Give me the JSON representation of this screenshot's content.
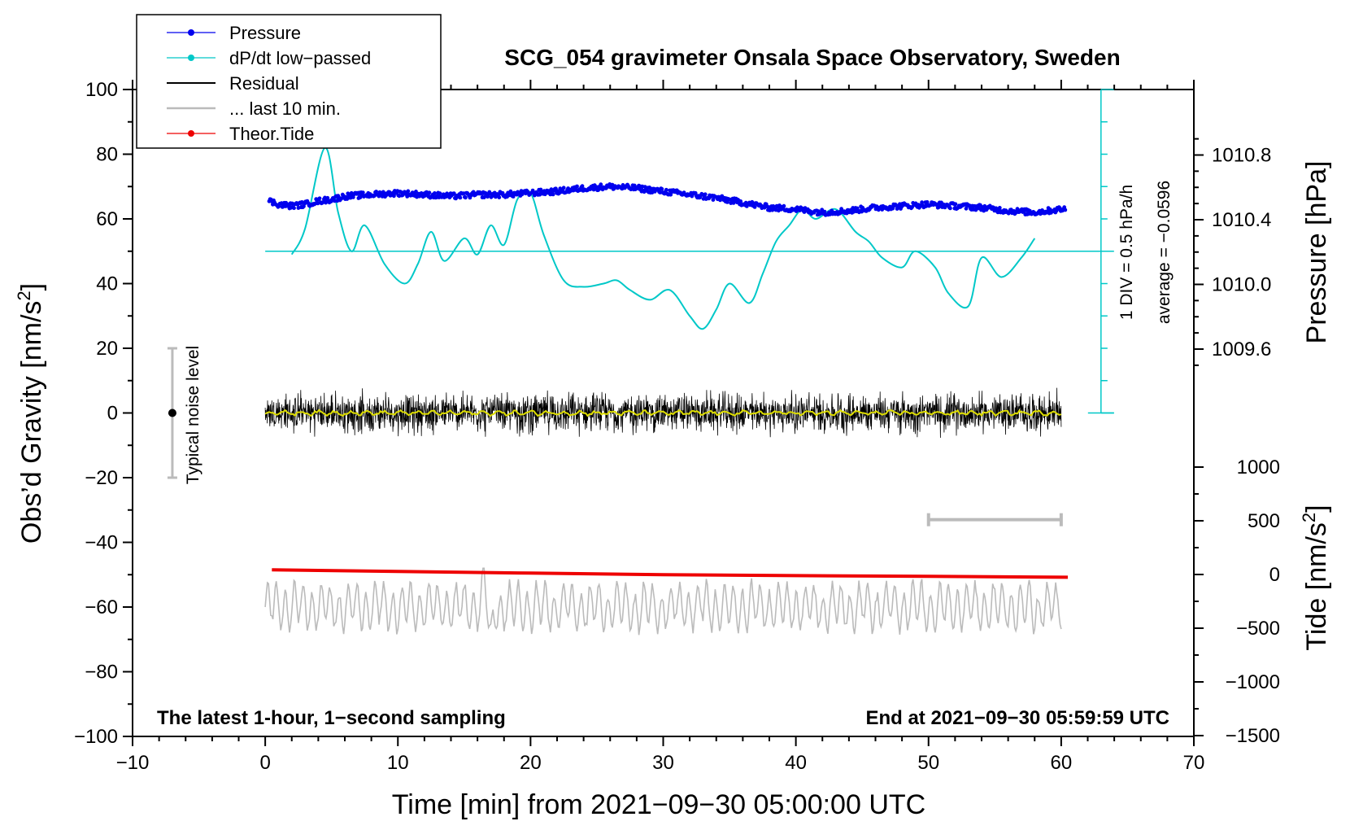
{
  "chart_data": {
    "type": "line",
    "title": "SCG_054 gravimeter Onsala Space Observatory, Sweden",
    "xlabel": "Time [min] from 2021−09−30 05:00:00 UTC",
    "ylabel_left": "Obs’d Gravity [nm/s",
    "ylabel_left_sup": "2",
    "ylabel_left_end": "]",
    "ylabel_pressure": "Pressure [hPa]",
    "ylabel_tide": "Tide [nm/s",
    "ylabel_tide_sup": "2",
    "ylabel_tide_end": "]",
    "xlim": [
      -10,
      70
    ],
    "ylim_left": [
      -100,
      100
    ],
    "x_ticks": [
      -10,
      0,
      10,
      20,
      30,
      40,
      50,
      60,
      70
    ],
    "x_tick_labels": [
      "−10",
      "0",
      "10",
      "20",
      "30",
      "40",
      "50",
      "60",
      "70"
    ],
    "y_left_ticks": [
      100,
      80,
      60,
      40,
      20,
      0,
      -20,
      -40,
      -60,
      -80,
      -100
    ],
    "y_left_tick_labels": [
      "100",
      "80",
      "60",
      "40",
      "20",
      "0",
      "−20",
      "−40",
      "−60",
      "−80",
      "−100"
    ],
    "pressure_axis": {
      "ticks": [
        1010.8,
        1010.4,
        1010.0,
        1009.6
      ],
      "tick_labels": [
        "1010.8",
        "1010.4",
        "1010.0",
        "1009.6"
      ]
    },
    "tide_axis": {
      "ticks": [
        1000,
        500,
        0,
        -500,
        -1000,
        -1500
      ],
      "tick_labels": [
        "1000",
        "500",
        "0",
        "−500",
        "−1000",
        "−1500"
      ]
    },
    "legend": [
      {
        "label": "Pressure",
        "color": "#0000ee",
        "marker": true
      },
      {
        "label": "dP/dt low−passed",
        "color": "#00c8c8",
        "marker": true
      },
      {
        "label": "Residual",
        "color": "#000000",
        "marker": false
      },
      {
        "label": "... last 10 min.",
        "color": "#bbbbbb",
        "marker": false
      },
      {
        "label": "Theor.Tide",
        "color": "#ee0000",
        "marker": true
      }
    ],
    "series": [
      {
        "name": "Pressure",
        "color": "#0000ee",
        "x": [
          0,
          1,
          2,
          3,
          4,
          5,
          6,
          8,
          10,
          12,
          14,
          16,
          18,
          20,
          22,
          24,
          26,
          28,
          30,
          32,
          34,
          36,
          38,
          40,
          42,
          44,
          46,
          48,
          50,
          52,
          54,
          56,
          58,
          60
        ],
        "values": [
          66,
          64.5,
          64,
          64.5,
          65.5,
          66,
          67,
          67.5,
          68,
          67.5,
          67,
          67.5,
          67.5,
          68,
          68.5,
          69.5,
          70,
          69.5,
          68.5,
          67.5,
          66.5,
          65,
          63.5,
          63,
          62,
          62.5,
          63.5,
          64,
          64.5,
          64,
          63.5,
          62.5,
          62,
          63
        ]
      },
      {
        "name": "dP/dt low−passed",
        "color": "#00c8c8",
        "x": [
          2,
          3,
          4.5,
          5.5,
          6.5,
          7.5,
          9,
          10.5,
          11.5,
          12.5,
          13.5,
          15,
          16,
          17,
          18,
          19,
          20,
          21,
          22.5,
          24,
          25.5,
          26.5,
          27.5,
          29,
          30.5,
          32,
          33,
          34,
          35,
          36.5,
          37.5,
          38.5,
          39.5,
          40.5,
          41.5,
          43,
          44.5,
          45.5,
          46.5,
          48,
          49,
          50.5,
          51.5,
          53,
          54,
          55.5,
          57,
          58
        ],
        "values": [
          49,
          57,
          82,
          62,
          50,
          58,
          46,
          40,
          46,
          56,
          47,
          54,
          49,
          58,
          52,
          66,
          68,
          55,
          41,
          39,
          40,
          41,
          38,
          35,
          38,
          30,
          26,
          32,
          40,
          34,
          43,
          53,
          58,
          63,
          60,
          63,
          56,
          53,
          48,
          45,
          50,
          45,
          37,
          33,
          48,
          42,
          48,
          54
        ]
      },
      {
        "name": "Residual",
        "color": "#000000",
        "x_range": [
          0,
          60
        ],
        "center": 0,
        "amplitude_range": [
          -15,
          12
        ]
      },
      {
        "name": "Residual smoothed",
        "color": "#dddd00",
        "x_range": [
          0,
          60
        ],
        "center": 0
      },
      {
        "name": "... last 10 min.",
        "color": "#bbbbbb",
        "x_range": [
          0,
          60
        ],
        "center": -60,
        "amplitude_range": [
          -77,
          -48
        ]
      },
      {
        "name": "Theor.Tide",
        "color": "#ee0000",
        "x": [
          0.5,
          10,
          20,
          30,
          40,
          50,
          60.5
        ],
        "values": [
          -48.5,
          -49,
          -49.5,
          -50,
          -50.3,
          -50.5,
          -50.8
        ]
      }
    ],
    "dpdt_scale": {
      "baseline": 50,
      "label_div": "1 DIV = 0.5 hPa/h",
      "label_avg": "average = −0.0596"
    },
    "noise_bar": {
      "x": -7,
      "range": [
        -20,
        20
      ],
      "label": "Typical noise level"
    },
    "scale_bar_10min": {
      "x_range": [
        50,
        60
      ],
      "y": -33
    },
    "annotations": {
      "bottom_left": "The latest 1-hour, 1−second sampling",
      "bottom_right": "End at 2021−09−30 05:59:59 UTC"
    }
  }
}
